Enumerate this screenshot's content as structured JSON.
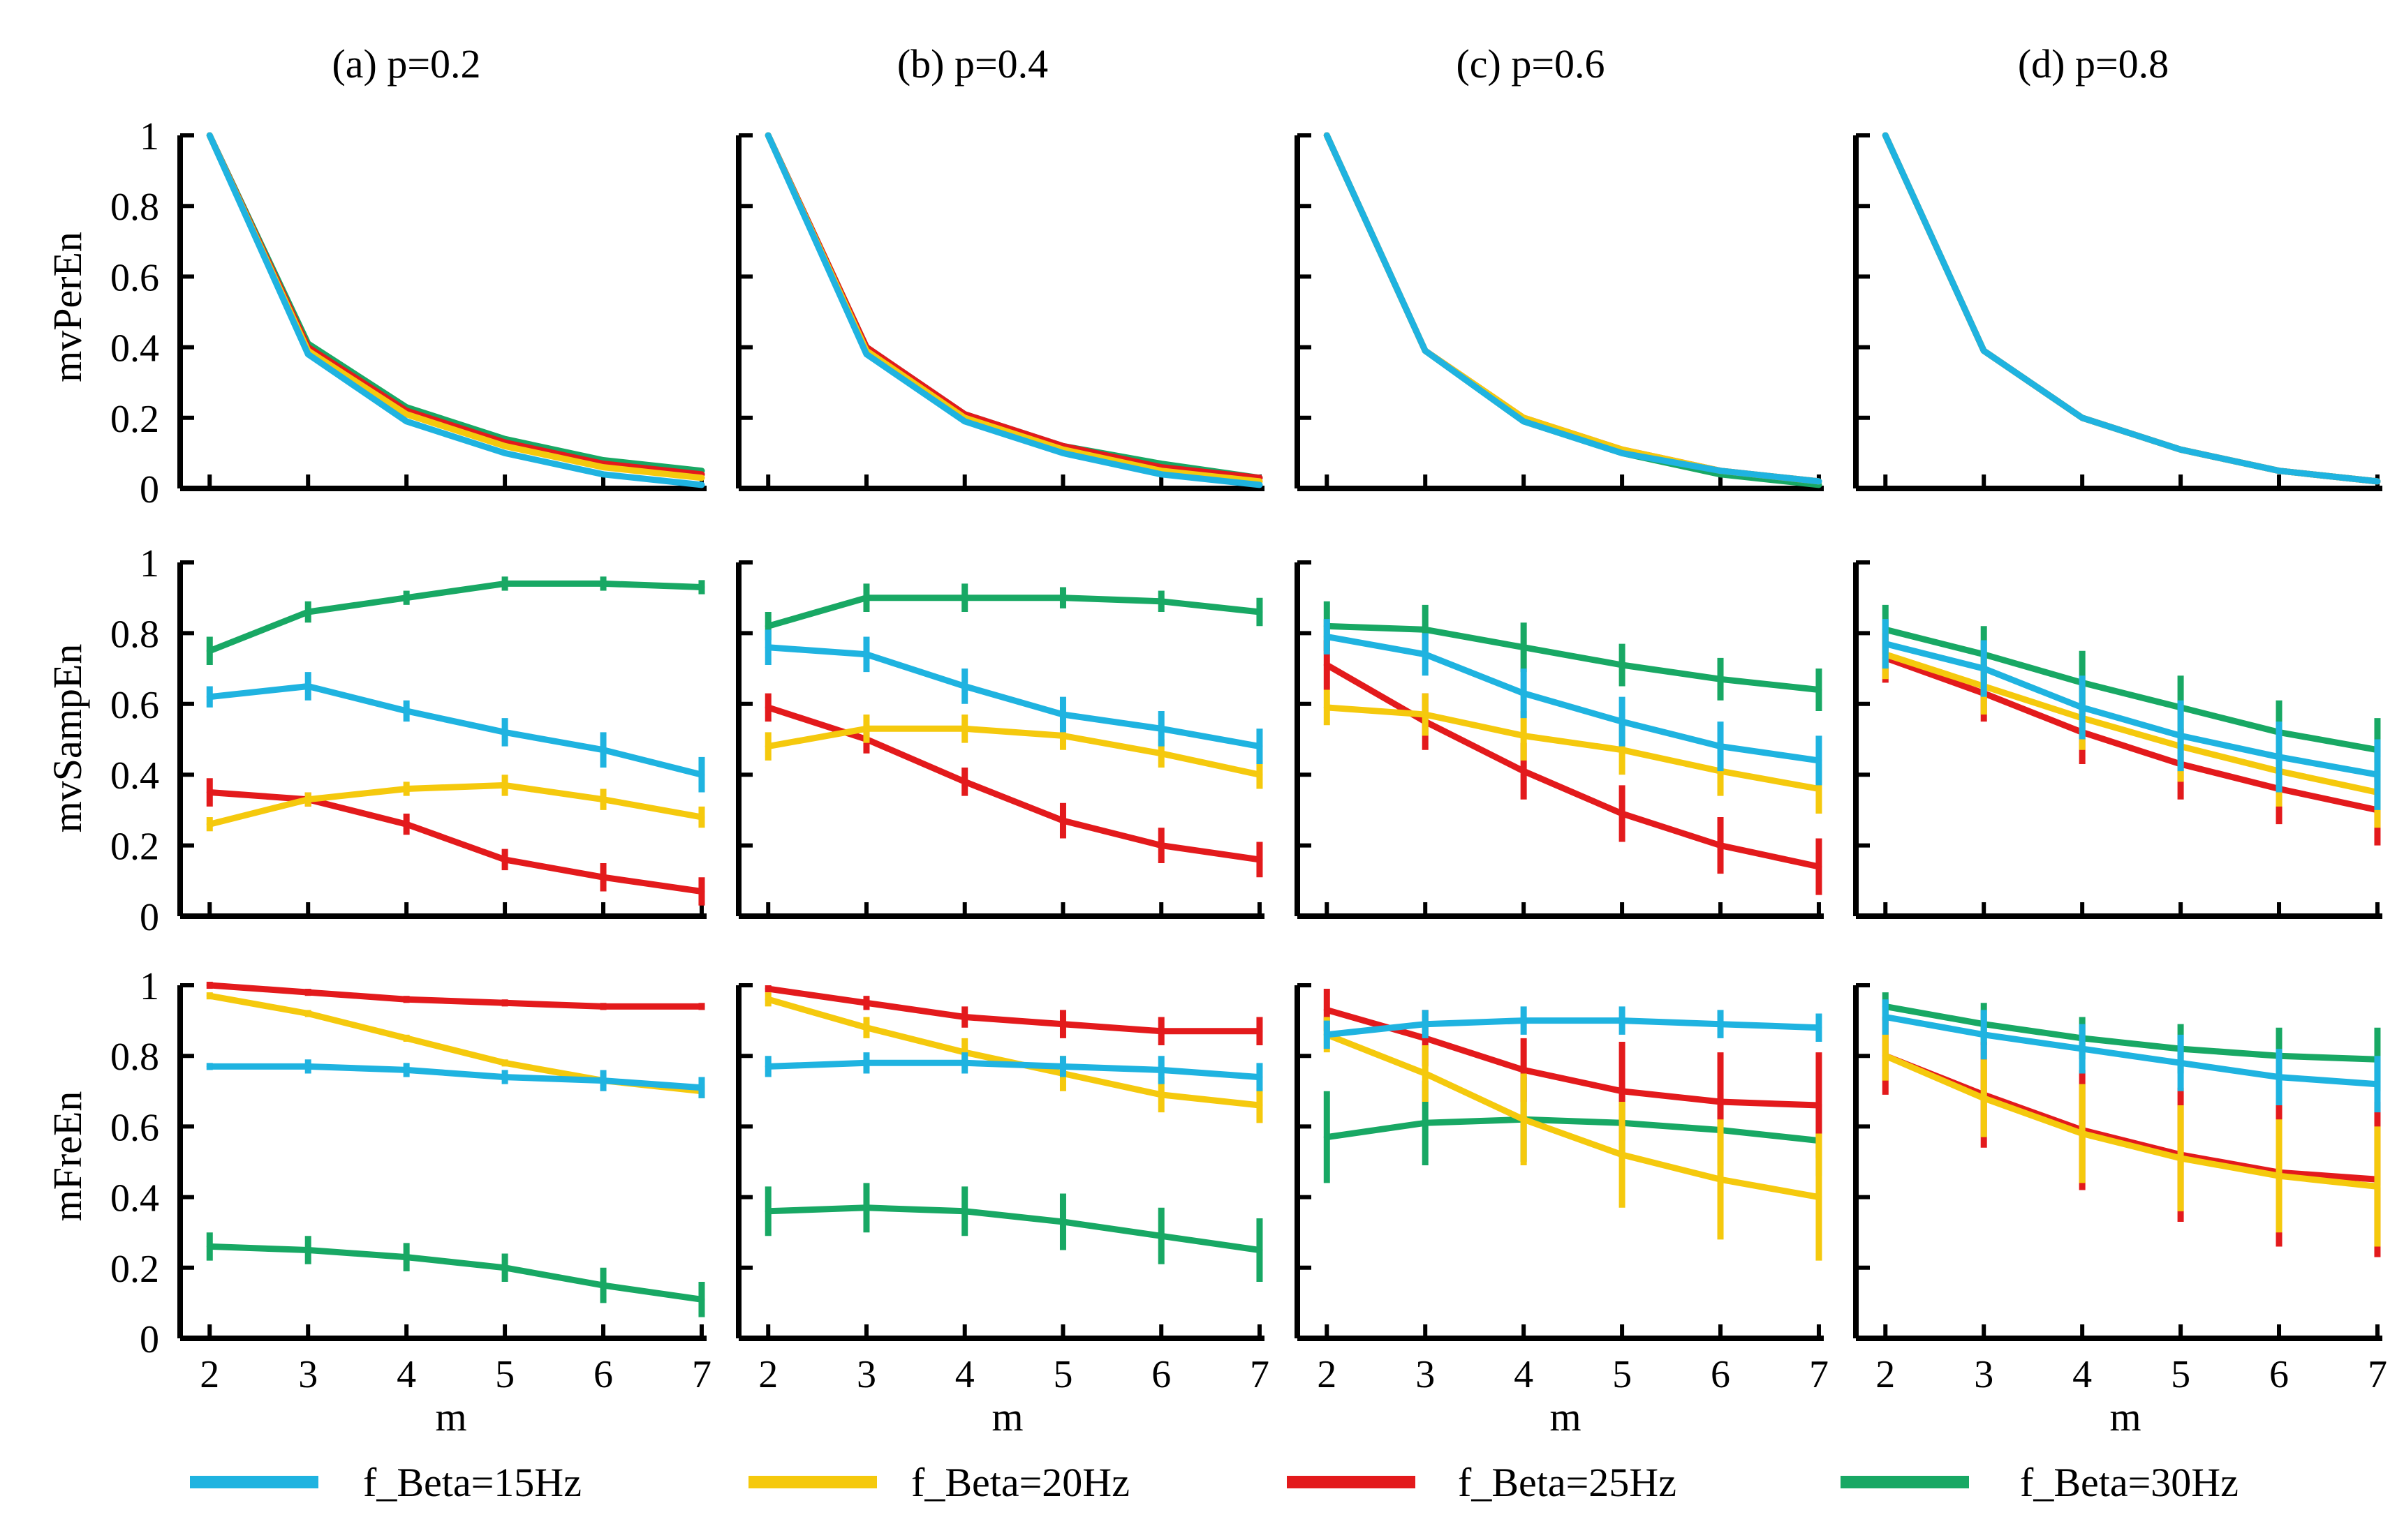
{
  "chart_data": {
    "type": "line",
    "layout": "3 rows x 4 columns grid of line plots with error bars",
    "columns": [
      "(a) p=0.2",
      "(b) p=0.4",
      "(c) p=0.6",
      "(d) p=0.8"
    ],
    "rows": [
      "mvPerEn",
      "mvSampEn",
      "mFreEn"
    ],
    "xlabel": "m",
    "x": [
      2,
      3,
      4,
      5,
      6,
      7
    ],
    "x_tick_labels": [
      "2",
      "3",
      "4",
      "5",
      "6",
      "7"
    ],
    "xlim": [
      1.7,
      7.05
    ],
    "ylim": [
      0,
      1
    ],
    "y_tick_labels": [
      "0",
      "0.2",
      "0.4",
      "0.6",
      "0.8",
      "1"
    ],
    "series_names": [
      "f_Beta=15Hz",
      "f_Beta=20Hz",
      "f_Beta=25Hz",
      "f_Beta=30Hz"
    ],
    "series_colors": [
      "#1fb3e0",
      "#f5c90d",
      "#e31a1c",
      "#18a864"
    ],
    "legend_position": "bottom",
    "draw_order": [
      3,
      2,
      1,
      0
    ],
    "panels": [
      [
        [
          {
            "values": [
              1.0,
              0.38,
              0.19,
              0.1,
              0.04,
              0.01
            ],
            "errors": [
              0,
              0,
              0,
              0,
              0,
              0
            ]
          },
          {
            "values": [
              1.0,
              0.39,
              0.21,
              0.12,
              0.06,
              0.03
            ],
            "errors": [
              0,
              0,
              0,
              0,
              0,
              0
            ]
          },
          {
            "values": [
              1.0,
              0.4,
              0.22,
              0.13,
              0.07,
              0.04
            ],
            "errors": [
              0,
              0,
              0,
              0,
              0,
              0
            ]
          },
          {
            "values": [
              1.0,
              0.41,
              0.23,
              0.14,
              0.08,
              0.05
            ],
            "errors": [
              0,
              0,
              0,
              0,
              0,
              0
            ]
          }
        ],
        [
          {
            "values": [
              1.0,
              0.38,
              0.19,
              0.1,
              0.04,
              0.01
            ],
            "errors": [
              0,
              0,
              0,
              0,
              0,
              0
            ]
          },
          {
            "values": [
              1.0,
              0.39,
              0.2,
              0.11,
              0.05,
              0.02
            ],
            "errors": [
              0,
              0,
              0,
              0,
              0,
              0
            ]
          },
          {
            "values": [
              1.0,
              0.4,
              0.21,
              0.12,
              0.06,
              0.03
            ],
            "errors": [
              0,
              0,
              0,
              0,
              0,
              0
            ]
          },
          {
            "values": [
              1.0,
              0.4,
              0.21,
              0.12,
              0.07,
              0.03
            ],
            "errors": [
              0,
              0,
              0,
              0,
              0,
              0
            ]
          }
        ],
        [
          {
            "values": [
              1.0,
              0.39,
              0.19,
              0.1,
              0.05,
              0.02
            ],
            "errors": [
              0,
              0,
              0,
              0,
              0,
              0
            ]
          },
          {
            "values": [
              1.0,
              0.39,
              0.2,
              0.11,
              0.05,
              0.02
            ],
            "errors": [
              0,
              0,
              0,
              0,
              0,
              0
            ]
          },
          {
            "values": [
              1.0,
              0.39,
              0.2,
              0.11,
              0.05,
              0.02
            ],
            "errors": [
              0,
              0,
              0,
              0,
              0,
              0
            ]
          },
          {
            "values": [
              1.0,
              0.39,
              0.19,
              0.1,
              0.04,
              0.01
            ],
            "errors": [
              0,
              0,
              0,
              0,
              0,
              0
            ]
          }
        ],
        [
          {
            "values": [
              1.0,
              0.39,
              0.2,
              0.11,
              0.05,
              0.02
            ],
            "errors": [
              0,
              0,
              0,
              0,
              0,
              0
            ]
          },
          {
            "values": [
              1.0,
              0.39,
              0.2,
              0.11,
              0.05,
              0.02
            ],
            "errors": [
              0,
              0,
              0,
              0,
              0,
              0
            ]
          },
          {
            "values": [
              1.0,
              0.39,
              0.2,
              0.11,
              0.05,
              0.02
            ],
            "errors": [
              0,
              0,
              0,
              0,
              0,
              0
            ]
          },
          {
            "values": [
              1.0,
              0.39,
              0.2,
              0.11,
              0.05,
              0.02
            ],
            "errors": [
              0,
              0,
              0,
              0,
              0,
              0
            ]
          }
        ]
      ],
      [
        [
          {
            "values": [
              0.62,
              0.65,
              0.58,
              0.52,
              0.47,
              0.4
            ],
            "errors": [
              0.03,
              0.04,
              0.03,
              0.04,
              0.05,
              0.05
            ]
          },
          {
            "values": [
              0.26,
              0.33,
              0.36,
              0.37,
              0.33,
              0.28
            ],
            "errors": [
              0.02,
              0.02,
              0.02,
              0.03,
              0.03,
              0.03
            ]
          },
          {
            "values": [
              0.35,
              0.33,
              0.26,
              0.16,
              0.11,
              0.07
            ],
            "errors": [
              0.04,
              0.02,
              0.03,
              0.03,
              0.04,
              0.04
            ]
          },
          {
            "values": [
              0.75,
              0.86,
              0.9,
              0.94,
              0.94,
              0.93
            ],
            "errors": [
              0.04,
              0.03,
              0.02,
              0.02,
              0.02,
              0.02
            ]
          }
        ],
        [
          {
            "values": [
              0.76,
              0.74,
              0.65,
              0.57,
              0.53,
              0.48
            ],
            "errors": [
              0.05,
              0.05,
              0.05,
              0.05,
              0.05,
              0.05
            ]
          },
          {
            "values": [
              0.48,
              0.53,
              0.53,
              0.51,
              0.46,
              0.4
            ],
            "errors": [
              0.04,
              0.04,
              0.04,
              0.04,
              0.04,
              0.04
            ]
          },
          {
            "values": [
              0.59,
              0.5,
              0.38,
              0.27,
              0.2,
              0.16
            ],
            "errors": [
              0.04,
              0.04,
              0.04,
              0.05,
              0.05,
              0.05
            ]
          },
          {
            "values": [
              0.82,
              0.9,
              0.9,
              0.9,
              0.89,
              0.86
            ],
            "errors": [
              0.04,
              0.04,
              0.04,
              0.03,
              0.03,
              0.04
            ]
          }
        ],
        [
          {
            "values": [
              0.79,
              0.74,
              0.63,
              0.55,
              0.48,
              0.44
            ],
            "errors": [
              0.05,
              0.06,
              0.07,
              0.07,
              0.07,
              0.07
            ]
          },
          {
            "values": [
              0.59,
              0.57,
              0.51,
              0.47,
              0.41,
              0.36
            ],
            "errors": [
              0.05,
              0.06,
              0.07,
              0.07,
              0.07,
              0.07
            ]
          },
          {
            "values": [
              0.71,
              0.55,
              0.41,
              0.29,
              0.2,
              0.14
            ],
            "errors": [
              0.07,
              0.08,
              0.08,
              0.08,
              0.08,
              0.08
            ]
          },
          {
            "values": [
              0.82,
              0.81,
              0.76,
              0.71,
              0.67,
              0.64
            ],
            "errors": [
              0.07,
              0.07,
              0.07,
              0.06,
              0.06,
              0.06
            ]
          }
        ],
        [
          {
            "values": [
              0.77,
              0.7,
              0.59,
              0.51,
              0.45,
              0.4
            ],
            "errors": [
              0.07,
              0.08,
              0.09,
              0.1,
              0.1,
              0.1
            ]
          },
          {
            "values": [
              0.74,
              0.65,
              0.56,
              0.48,
              0.41,
              0.35
            ],
            "errors": [
              0.07,
              0.08,
              0.09,
              0.1,
              0.1,
              0.1
            ]
          },
          {
            "values": [
              0.73,
              0.63,
              0.52,
              0.43,
              0.36,
              0.3
            ],
            "errors": [
              0.07,
              0.08,
              0.09,
              0.1,
              0.1,
              0.1
            ]
          },
          {
            "values": [
              0.81,
              0.74,
              0.66,
              0.59,
              0.52,
              0.47
            ],
            "errors": [
              0.07,
              0.08,
              0.09,
              0.09,
              0.09,
              0.09
            ]
          }
        ]
      ],
      [
        [
          {
            "values": [
              0.77,
              0.77,
              0.76,
              0.74,
              0.73,
              0.71
            ],
            "errors": [
              0.01,
              0.02,
              0.02,
              0.02,
              0.03,
              0.03
            ]
          },
          {
            "values": [
              0.97,
              0.92,
              0.85,
              0.78,
              0.73,
              0.7
            ],
            "errors": [
              0.01,
              0.01,
              0.01,
              0.01,
              0.02,
              0.02
            ]
          },
          {
            "values": [
              1.0,
              0.98,
              0.96,
              0.95,
              0.94,
              0.94
            ],
            "errors": [
              0.01,
              0.01,
              0.01,
              0.01,
              0.01,
              0.01
            ]
          },
          {
            "values": [
              0.26,
              0.25,
              0.23,
              0.2,
              0.15,
              0.11
            ],
            "errors": [
              0.04,
              0.04,
              0.04,
              0.04,
              0.05,
              0.05
            ]
          }
        ],
        [
          {
            "values": [
              0.77,
              0.78,
              0.78,
              0.77,
              0.76,
              0.74
            ],
            "errors": [
              0.03,
              0.03,
              0.03,
              0.03,
              0.04,
              0.04
            ]
          },
          {
            "values": [
              0.96,
              0.88,
              0.81,
              0.75,
              0.69,
              0.66
            ],
            "errors": [
              0.02,
              0.03,
              0.04,
              0.05,
              0.05,
              0.05
            ]
          },
          {
            "values": [
              0.99,
              0.95,
              0.91,
              0.89,
              0.87,
              0.87
            ],
            "errors": [
              0.01,
              0.02,
              0.03,
              0.04,
              0.04,
              0.04
            ]
          },
          {
            "values": [
              0.36,
              0.37,
              0.36,
              0.33,
              0.29,
              0.25
            ],
            "errors": [
              0.07,
              0.07,
              0.07,
              0.08,
              0.08,
              0.09
            ]
          }
        ],
        [
          {
            "values": [
              0.86,
              0.89,
              0.9,
              0.9,
              0.89,
              0.88
            ],
            "errors": [
              0.04,
              0.04,
              0.04,
              0.04,
              0.04,
              0.04
            ]
          },
          {
            "values": [
              0.86,
              0.75,
              0.62,
              0.52,
              0.45,
              0.4
            ],
            "errors": [
              0.05,
              0.08,
              0.13,
              0.15,
              0.17,
              0.18
            ]
          },
          {
            "values": [
              0.93,
              0.85,
              0.76,
              0.7,
              0.67,
              0.66
            ],
            "errors": [
              0.06,
              0.08,
              0.09,
              0.14,
              0.14,
              0.15
            ]
          },
          {
            "values": [
              0.57,
              0.61,
              0.62,
              0.61,
              0.59,
              0.56
            ],
            "errors": [
              0.13,
              0.12,
              0.12,
              0.1,
              0.1,
              0.1
            ]
          }
        ],
        [
          {
            "values": [
              0.91,
              0.86,
              0.82,
              0.78,
              0.74,
              0.72
            ],
            "errors": [
              0.05,
              0.07,
              0.07,
              0.08,
              0.08,
              0.08
            ]
          },
          {
            "values": [
              0.8,
              0.68,
              0.58,
              0.51,
              0.46,
              0.43
            ],
            "errors": [
              0.07,
              0.11,
              0.14,
              0.15,
              0.16,
              0.17
            ]
          },
          {
            "values": [
              0.8,
              0.69,
              0.59,
              0.52,
              0.47,
              0.45
            ],
            "errors": [
              0.11,
              0.15,
              0.17,
              0.19,
              0.21,
              0.22
            ]
          },
          {
            "values": [
              0.94,
              0.89,
              0.85,
              0.82,
              0.8,
              0.79
            ],
            "errors": [
              0.04,
              0.06,
              0.06,
              0.07,
              0.08,
              0.09
            ]
          }
        ]
      ]
    ]
  }
}
